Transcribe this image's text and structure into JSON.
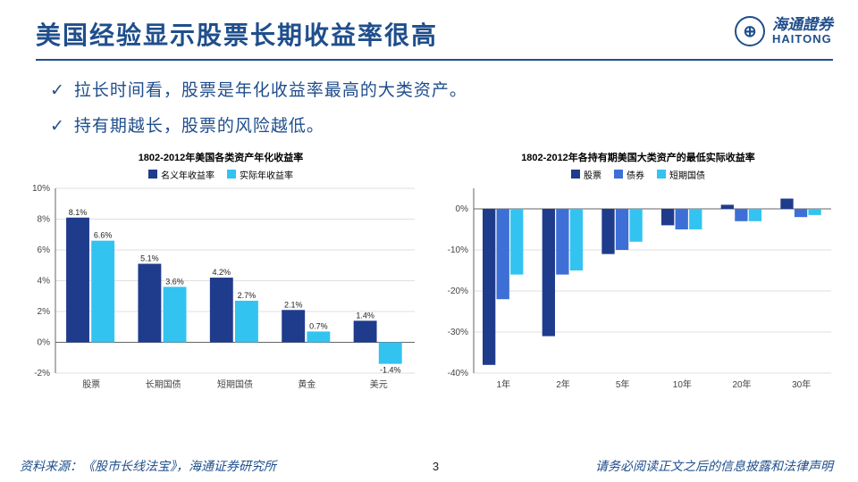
{
  "header": {
    "title": "美国经验显示股票长期收益率很高",
    "logo_cn": "海通證券",
    "logo_en": "HAITONG"
  },
  "bullets": [
    "拉长时间看，股票是年化收益率最高的大类资产。",
    "持有期越长，股票的风险越低。"
  ],
  "chart1": {
    "type": "bar",
    "title": "1802-2012年美国各类资产年化收益率",
    "categories": [
      "股票",
      "长期国债",
      "短期国债",
      "黄金",
      "美元"
    ],
    "series": [
      {
        "name": "名义年收益率",
        "color": "#1f3b8c",
        "values": [
          8.1,
          5.1,
          4.2,
          2.1,
          1.4
        ]
      },
      {
        "name": "实际年收益率",
        "color": "#33c3f0",
        "values": [
          6.6,
          3.6,
          2.7,
          0.7,
          -1.4
        ]
      }
    ],
    "ylim": [
      -2,
      10
    ],
    "ytick_step": 2,
    "grid_color": "#bfbfbf",
    "axis_color": "#666",
    "label_fontsize": 10,
    "title_fontsize": 11
  },
  "chart2": {
    "type": "bar",
    "title": "1802-2012年各持有期美国大类资产的最低实际收益率",
    "categories": [
      "1年",
      "2年",
      "5年",
      "10年",
      "20年",
      "30年"
    ],
    "series": [
      {
        "name": "股票",
        "color": "#1f3b8c",
        "values": [
          -38,
          -31,
          -11,
          -4,
          1,
          2.5
        ]
      },
      {
        "name": "债券",
        "color": "#3d6fd6",
        "values": [
          -22,
          -16,
          -10,
          -5,
          -3,
          -2
        ]
      },
      {
        "name": "短期国债",
        "color": "#33c3f0",
        "values": [
          -16,
          -15,
          -8,
          -5,
          -3,
          -1.5
        ]
      }
    ],
    "ylim": [
      -40,
      5
    ],
    "ytick_step": 10,
    "grid_color": "#bfbfbf",
    "axis_color": "#666",
    "label_fontsize": 10,
    "title_fontsize": 11
  },
  "footer": {
    "source": "资料来源：《股市长线法宝》，海通证券研究所",
    "page": "3",
    "disclaimer": "请务必阅读正文之后的信息披露和法律声明"
  }
}
